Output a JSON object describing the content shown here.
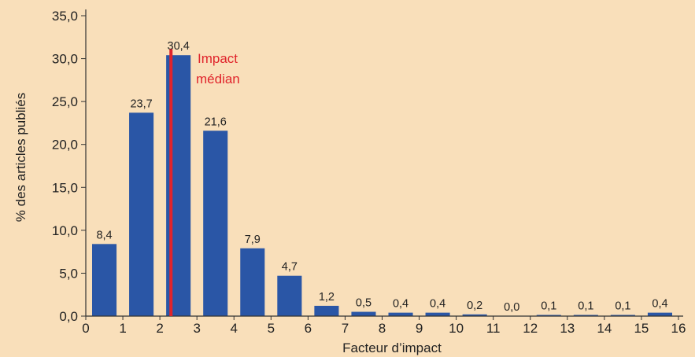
{
  "chart_data": {
    "type": "bar",
    "xlabel": "Facteur d’impact",
    "ylabel": "% des articles publiés",
    "ylim": [
      0,
      35
    ],
    "xlim": [
      0,
      16
    ],
    "y_ticks": [
      "0,0",
      "5,0",
      "10,0",
      "15,0",
      "20,0",
      "25,0",
      "30,0",
      "35,0"
    ],
    "x_ticks": [
      "0",
      "1",
      "2",
      "3",
      "4",
      "5",
      "6",
      "7",
      "8",
      "9",
      "10",
      "11",
      "12",
      "13",
      "14",
      "15",
      "16"
    ],
    "bars": [
      {
        "x": 0.5,
        "value": 8.4,
        "label": "8,4"
      },
      {
        "x": 1.5,
        "value": 23.7,
        "label": "23,7"
      },
      {
        "x": 2.5,
        "value": 30.4,
        "label": "30,4"
      },
      {
        "x": 3.5,
        "value": 21.6,
        "label": "21,6"
      },
      {
        "x": 4.5,
        "value": 7.9,
        "label": "7,9"
      },
      {
        "x": 5.5,
        "value": 4.7,
        "label": "4,7"
      },
      {
        "x": 6.5,
        "value": 1.2,
        "label": "1,2"
      },
      {
        "x": 7.5,
        "value": 0.5,
        "label": "0,5"
      },
      {
        "x": 8.5,
        "value": 0.4,
        "label": "0,4"
      },
      {
        "x": 9.5,
        "value": 0.4,
        "label": "0,4"
      },
      {
        "x": 10.5,
        "value": 0.2,
        "label": "0,2"
      },
      {
        "x": 11.5,
        "value": 0.0,
        "label": "0,0"
      },
      {
        "x": 12.5,
        "value": 0.1,
        "label": "0,1"
      },
      {
        "x": 13.5,
        "value": 0.1,
        "label": "0,1"
      },
      {
        "x": 14.5,
        "value": 0.1,
        "label": "0,1"
      },
      {
        "x": 15.5,
        "value": 0.4,
        "label": "0,4"
      }
    ],
    "median": {
      "x": 2.3,
      "label_line1": "Impact",
      "label_line2": "médian",
      "color": "#e0242b"
    },
    "bar_color": "#2a56a6",
    "background": "#f9dfba"
  }
}
